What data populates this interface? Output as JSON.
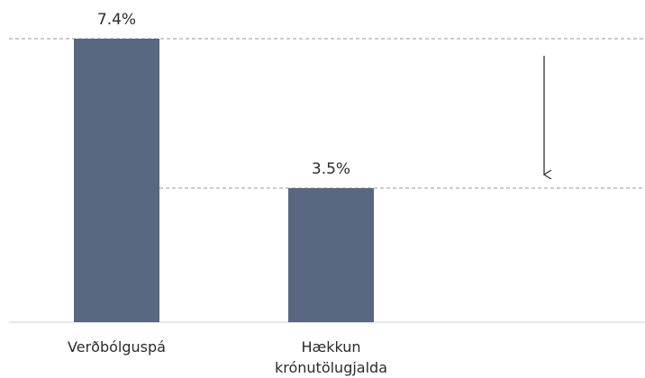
{
  "chart_data": {
    "type": "bar",
    "categories": [
      "Verðbólguspá",
      "Hækkun krónutölugjalda"
    ],
    "values": [
      7.4,
      3.5
    ],
    "value_labels": [
      "7.4%",
      "3.5%"
    ],
    "color": "#596780",
    "ylim": [
      0,
      7.4
    ]
  }
}
